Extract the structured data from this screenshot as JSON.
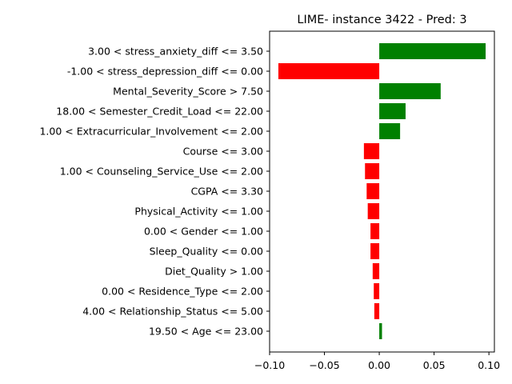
{
  "chart_data": {
    "type": "bar",
    "orientation": "horizontal",
    "title": "LIME- instance 3422 - Pred: 3",
    "xlabel": "",
    "ylabel": "",
    "xlim": [
      -0.1,
      0.105
    ],
    "xticks": [
      -0.1,
      -0.05,
      0.0,
      0.05,
      0.1
    ],
    "xtick_labels": [
      "−0.10",
      "−0.05",
      "0.00",
      "0.05",
      "0.10"
    ],
    "grid": false,
    "positive_color": "#008000",
    "negative_color": "#ff0000",
    "categories": [
      "3.00 < stress_anxiety_diff <= 3.50",
      "-1.00 < stress_depression_diff <= 0.00",
      "Mental_Severity_Score > 7.50",
      "18.00 < Semester_Credit_Load <= 22.00",
      "1.00 < Extracurricular_Involvement <= 2.00",
      "Course <= 3.00",
      "1.00 < Counseling_Service_Use <= 2.00",
      "CGPA <= 3.30",
      "Physical_Activity <= 1.00",
      "0.00 < Gender <= 1.00",
      "Sleep_Quality <= 0.00",
      "Diet_Quality > 1.00",
      "0.00 < Residence_Type <= 2.00",
      "4.00 < Relationship_Status <= 5.00",
      "19.50 < Age <= 23.00"
    ],
    "values": [
      0.097,
      -0.092,
      0.056,
      0.024,
      0.019,
      -0.014,
      -0.013,
      -0.0115,
      -0.0105,
      -0.008,
      -0.008,
      -0.006,
      -0.005,
      -0.0045,
      0.0025
    ]
  }
}
